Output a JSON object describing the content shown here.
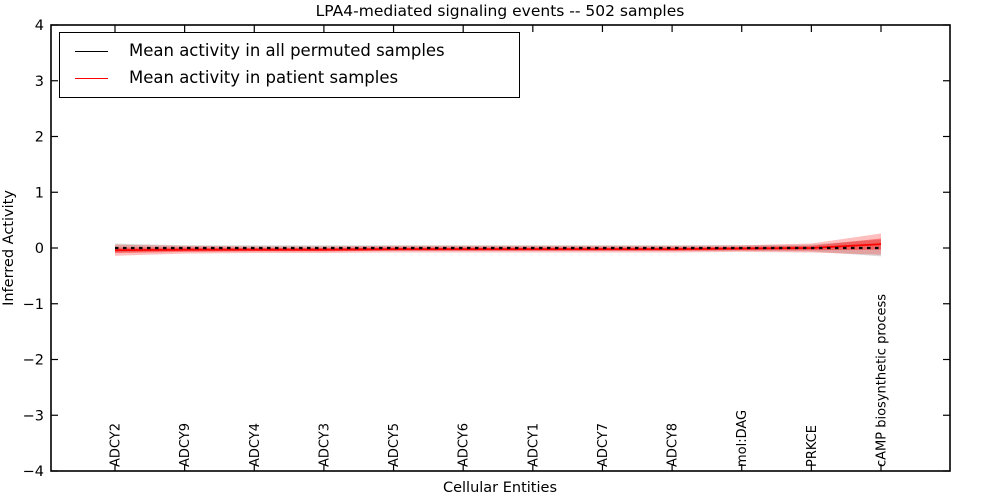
{
  "chart_data": {
    "type": "line",
    "title": "LPA4-mediated signaling events -- 502 samples",
    "xlabel": "Cellular Entities",
    "ylabel": "Inferred Activity",
    "ylim": [
      -4,
      4
    ],
    "yticks": [
      4,
      3,
      2,
      1,
      0,
      -1,
      -2,
      -3,
      -4
    ],
    "grid": false,
    "legend_position": "upper left",
    "categories": [
      "ADCY2",
      "ADCY9",
      "ADCY4",
      "ADCY3",
      "ADCY5",
      "ADCY6",
      "ADCY1",
      "ADCY7",
      "ADCY8",
      "mol:DAG",
      "PRKCE",
      "cAMP biosynthetic process"
    ],
    "series": [
      {
        "name": "Mean activity in all permuted samples",
        "color": "#000000",
        "line_style": "dotted",
        "values": [
          0.0,
          0.0,
          0.0,
          0.0,
          0.0,
          0.0,
          0.0,
          0.0,
          0.0,
          0.0,
          0.0,
          0.0
        ],
        "band": [
          0.08,
          0.05,
          0.05,
          0.05,
          0.05,
          0.05,
          0.05,
          0.05,
          0.05,
          0.05,
          0.06,
          0.15
        ],
        "band_color": "#000000",
        "band_opacity": 0.15
      },
      {
        "name": "Mean activity in patient samples",
        "color": "#ff0000",
        "line_style": "solid",
        "values": [
          -0.04,
          -0.03,
          -0.03,
          -0.03,
          -0.02,
          -0.02,
          -0.02,
          -0.02,
          -0.02,
          -0.01,
          0.0,
          0.07
        ],
        "band_outer": [
          0.1,
          0.07,
          0.06,
          0.06,
          0.06,
          0.06,
          0.06,
          0.06,
          0.06,
          0.06,
          0.08,
          0.19
        ],
        "band_inner": [
          0.05,
          0.04,
          0.03,
          0.03,
          0.03,
          0.03,
          0.03,
          0.03,
          0.03,
          0.03,
          0.04,
          0.1
        ],
        "band_color": "#ff0000",
        "band_outer_opacity": 0.25,
        "band_inner_opacity": 0.4
      }
    ]
  }
}
